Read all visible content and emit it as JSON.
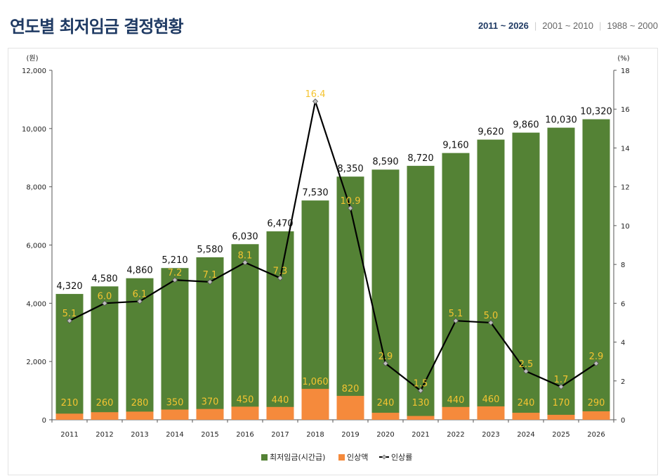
{
  "header": {
    "title": "연도별 최저임금 결정현황",
    "tabs": [
      {
        "label": "2011 ~ 2026",
        "active": true
      },
      {
        "label": "2001 ~ 2010",
        "active": false
      },
      {
        "label": "1988 ~ 2000",
        "active": false
      }
    ]
  },
  "chart_data": {
    "type": "bar",
    "title": "연도별 최저임금 결정현황",
    "categories": [
      "2011",
      "2012",
      "2013",
      "2014",
      "2015",
      "2016",
      "2017",
      "2018",
      "2019",
      "2020",
      "2021",
      "2022",
      "2023",
      "2024",
      "2025",
      "2026"
    ],
    "series": [
      {
        "name": "최저임금(시간급)",
        "type": "bar",
        "axis": "left",
        "color": "#548235",
        "values": [
          4320,
          4580,
          4860,
          5210,
          5580,
          6030,
          6470,
          7530,
          8350,
          8590,
          8720,
          9160,
          9620,
          9860,
          10030,
          10320
        ],
        "labels": [
          "4,320",
          "4,580",
          "4,860",
          "5,210",
          "5,580",
          "6,030",
          "6,470",
          "7,530",
          "8,350",
          "8,590",
          "8,720",
          "9,160",
          "9,620",
          "9,860",
          "10,030",
          "10,320"
        ]
      },
      {
        "name": "인상액",
        "type": "bar",
        "axis": "left",
        "color": "#f58a3c",
        "values": [
          210,
          260,
          280,
          350,
          370,
          450,
          440,
          1060,
          820,
          240,
          130,
          440,
          460,
          240,
          170,
          290
        ],
        "labels": [
          "210",
          "260",
          "280",
          "350",
          "370",
          "450",
          "440",
          "1,060",
          "820",
          "240",
          "130",
          "440",
          "460",
          "240",
          "170",
          "290"
        ]
      },
      {
        "name": "인상률",
        "type": "line",
        "axis": "right",
        "color": "#000000",
        "values": [
          5.1,
          6.0,
          6.1,
          7.2,
          7.1,
          8.1,
          7.3,
          16.4,
          10.9,
          2.9,
          1.5,
          5.1,
          5.0,
          2.5,
          1.7,
          2.9
        ],
        "labels": [
          "5.1",
          "6.0",
          "6.1",
          "7.2",
          "7.1",
          "8.1",
          "7.3",
          "16.4",
          "10.9",
          "2.9",
          "1.5",
          "5.1",
          "5.0",
          "2.5",
          "1.7",
          "2.9"
        ]
      }
    ],
    "y_left": {
      "label": "(원)",
      "min": 0,
      "max": 12000,
      "ticks": [
        0,
        2000,
        4000,
        6000,
        8000,
        10000,
        12000
      ],
      "tick_labels": [
        "0",
        "2,000",
        "4,000",
        "6,000",
        "8,000",
        "10,000",
        "12,000"
      ]
    },
    "y_right": {
      "label": "(%)",
      "min": 0,
      "max": 18,
      "ticks": [
        0,
        2,
        4,
        6,
        8,
        10,
        12,
        14,
        16,
        18
      ],
      "tick_labels": [
        "0",
        "2",
        "4",
        "6",
        "8",
        "10",
        "12",
        "14",
        "16",
        "18"
      ]
    },
    "legend": {
      "position": "bottom-right",
      "items": [
        "최저임금(시간급)",
        "인상액",
        "인상률"
      ]
    },
    "label_color": "#f4c431"
  }
}
